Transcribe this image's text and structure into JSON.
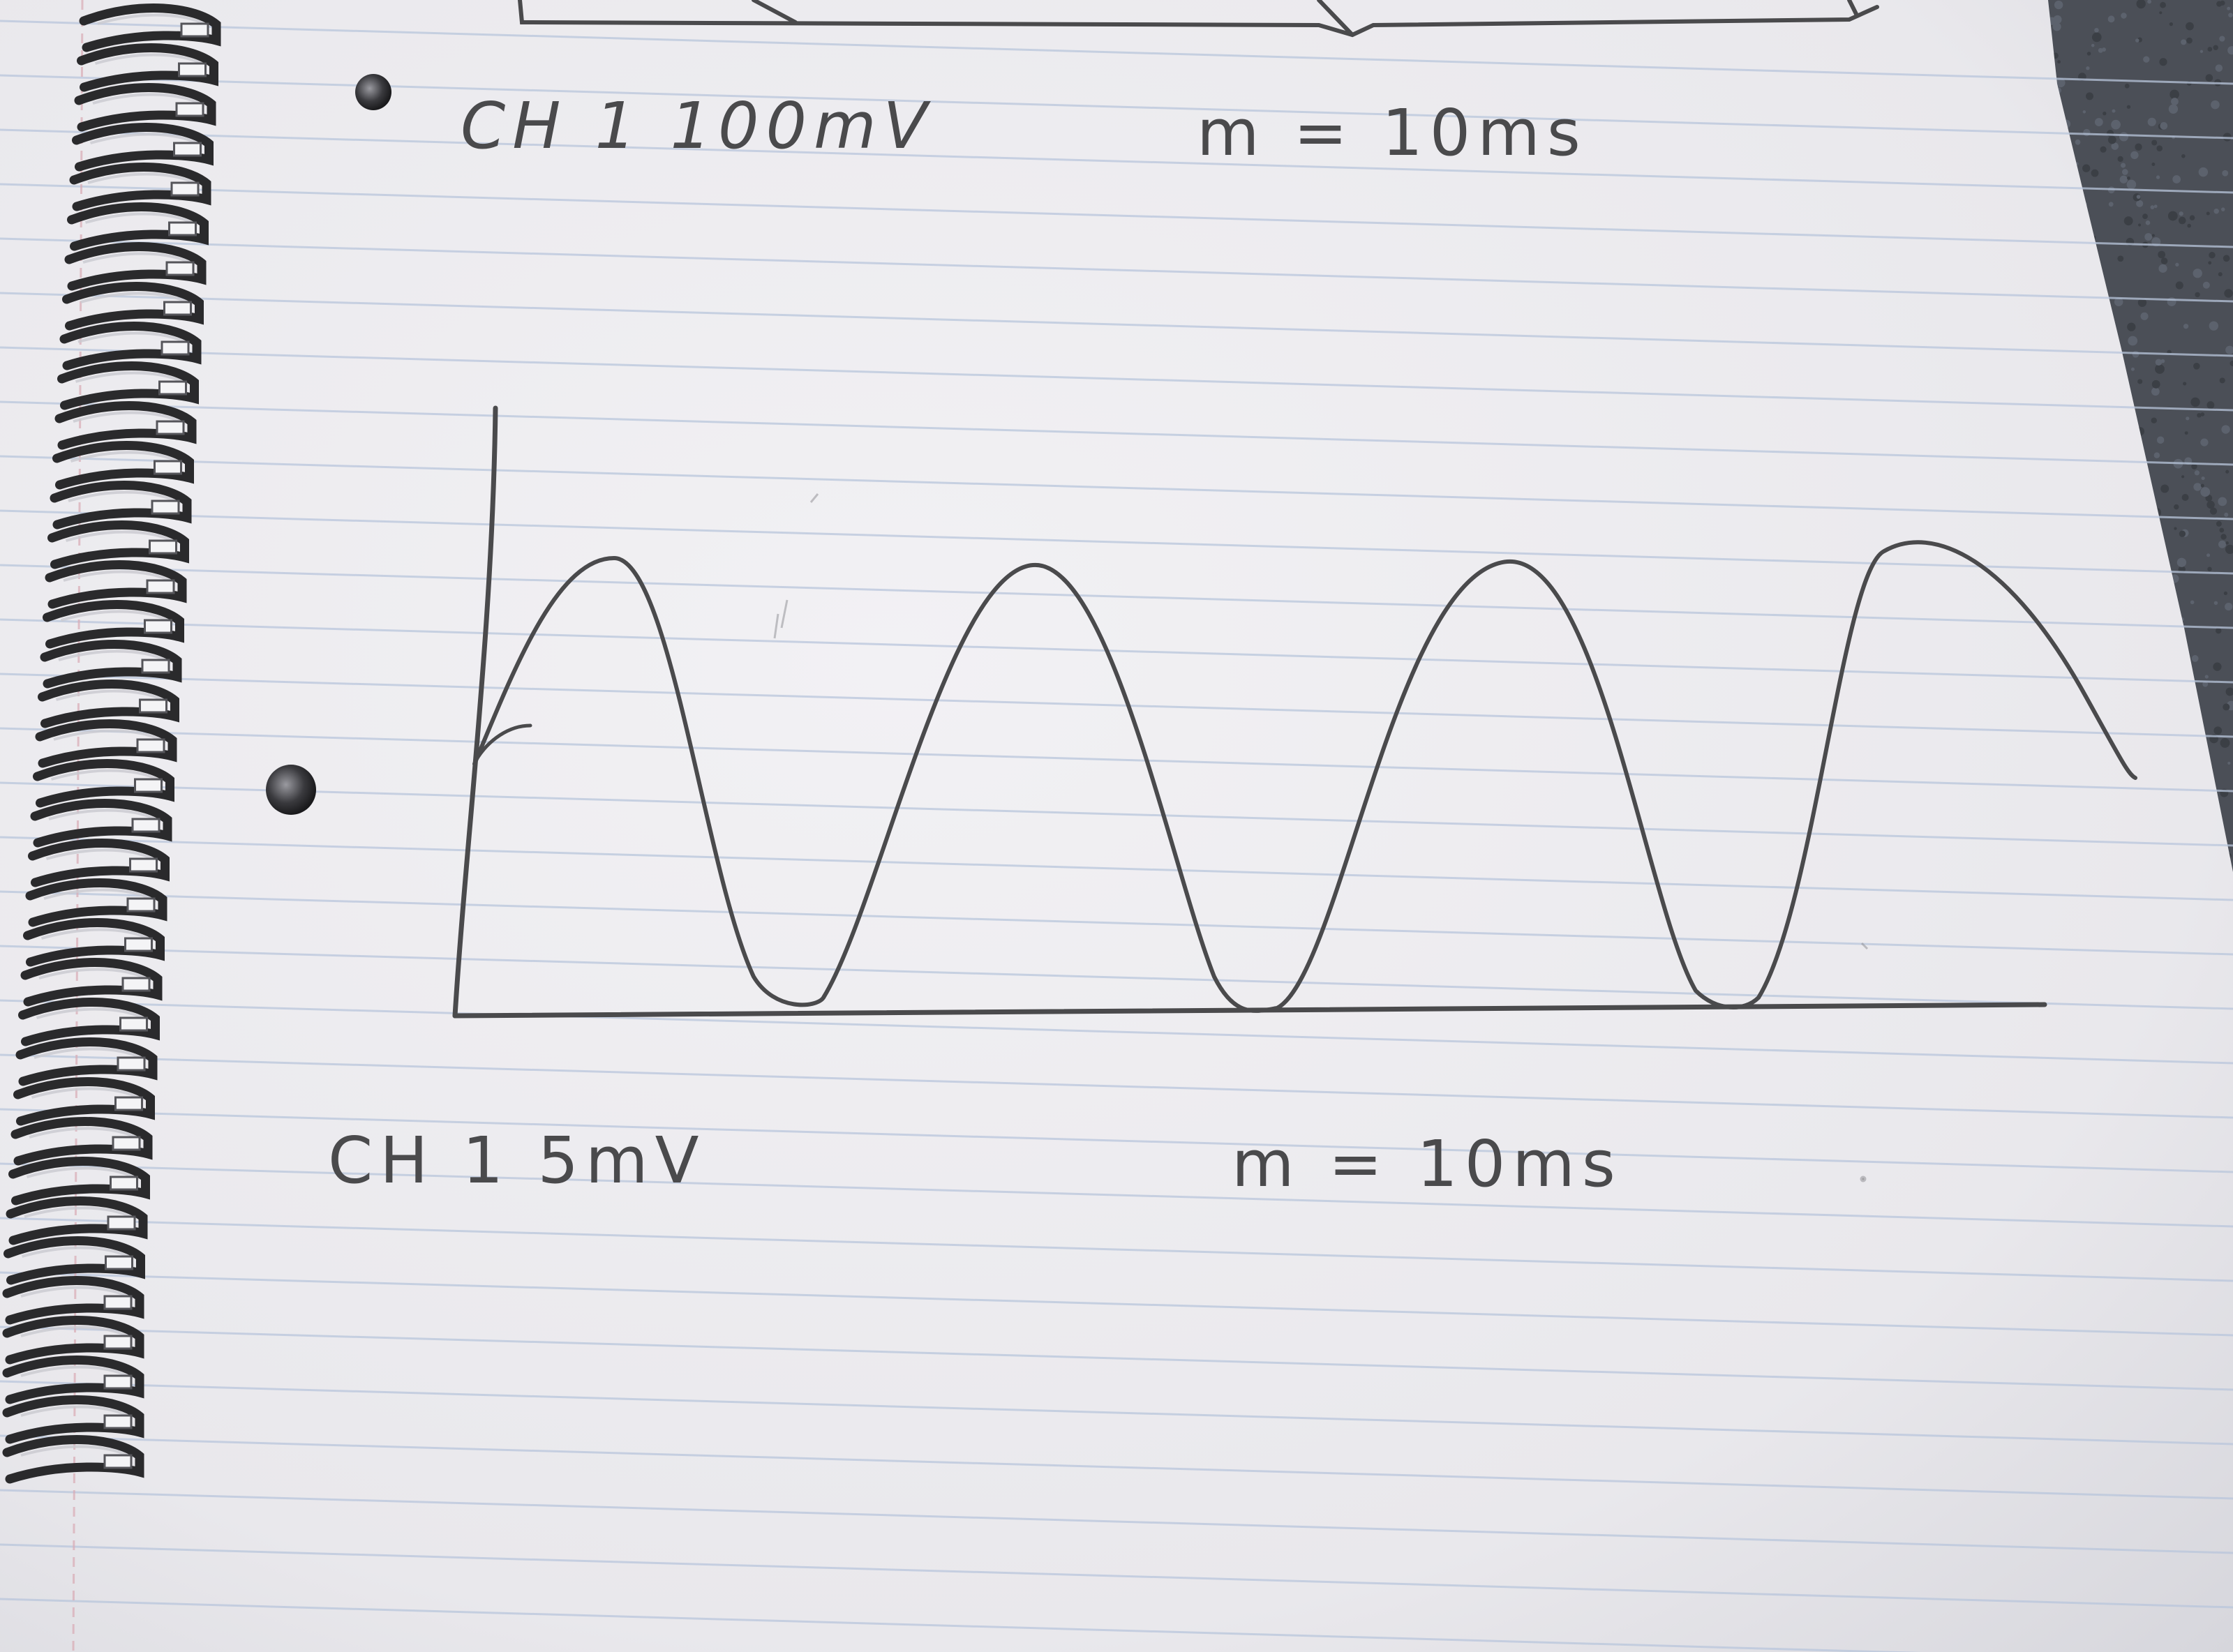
{
  "notes": {
    "top_channel": "CH 1 100mV",
    "top_timebase": "m = 10ms",
    "bottom_channel": "CH 1 5mV",
    "bottom_timebase": "m = 10ms"
  },
  "colors": {
    "paper": "#ecebee",
    "rule_line": "#b9c6dc",
    "margin_line": "#d7a9b2",
    "ink": "#4a4a4c",
    "carpet": "#4a4e55",
    "spiral_wire": "#2a2a2c"
  },
  "icons": {
    "hole_punch": "hole-punch-icon"
  },
  "drawing": {
    "waveform": "sine-wave-sketch",
    "axes": "hand-drawn-axes"
  }
}
